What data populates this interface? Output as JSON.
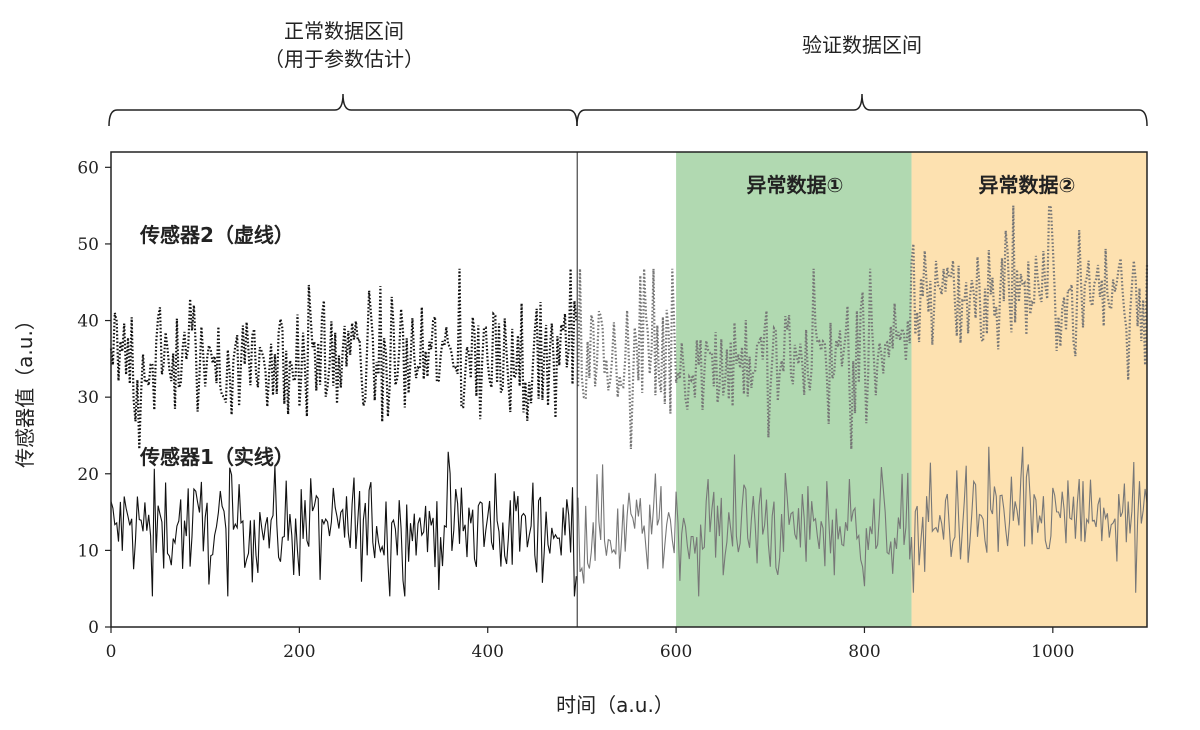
{
  "chart_data": {
    "type": "line",
    "xlabel": "时间（a.u.）",
    "ylabel": "传感器值（a.u.）",
    "xlim": [
      0,
      1100
    ],
    "ylim": [
      0,
      62
    ],
    "xticks": [
      0,
      200,
      400,
      600,
      800,
      1000
    ],
    "yticks": [
      0,
      10,
      20,
      30,
      40,
      50,
      60
    ],
    "grid": false,
    "regions": {
      "normal": {
        "label_line1": "正常数据区间",
        "label_line2": "（用于参数估计）",
        "x": [
          0,
          495
        ]
      },
      "validation": {
        "label": "验证数据区间",
        "x": [
          495,
          1100
        ]
      },
      "anomaly1": {
        "label": "异常数据①",
        "x": [
          600,
          850
        ],
        "color": "#b1d9b1"
      },
      "anomaly2": {
        "label": "异常数据②",
        "x": [
          850,
          1100
        ],
        "color": "#fde1b0"
      }
    },
    "divider_x": 495,
    "series": [
      {
        "name": "传感器1（实线）",
        "style": "solid",
        "color_normal": "#111111",
        "color_validation": "#777777",
        "baseline_normal": 13,
        "baseline_anomaly2": 14,
        "noise_range": [
          4,
          25
        ]
      },
      {
        "name": "传感器2（虚线）",
        "style": "dotted",
        "color_normal": "#111111",
        "color_validation": "#777777",
        "baseline_normal": 35,
        "baseline_anomaly2": 44,
        "noise_range": [
          21,
          55
        ]
      }
    ]
  }
}
